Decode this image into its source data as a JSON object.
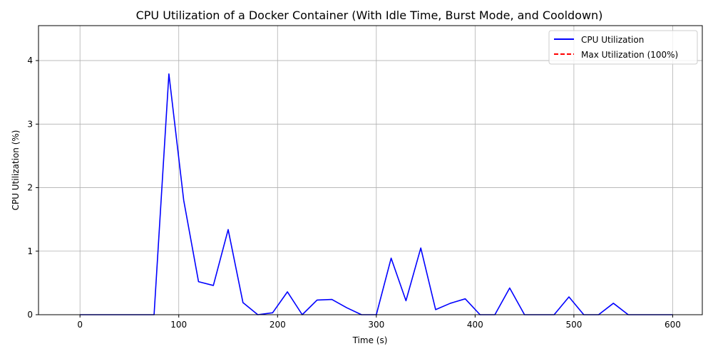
{
  "chart_data": {
    "type": "line",
    "title": "CPU Utilization of a Docker Container (With Idle Time, Burst Mode, and Cooldown)",
    "xlabel": "Time (s)",
    "ylabel": "CPU Utilization (%)",
    "xlim": [
      -42,
      630
    ],
    "ylim": [
      0,
      4.55
    ],
    "xticks": [
      0,
      100,
      200,
      300,
      400,
      500,
      600
    ],
    "yticks": [
      0,
      1,
      2,
      3,
      4
    ],
    "grid": true,
    "legend_position": "top-right",
    "series": [
      {
        "name": "CPU Utilization",
        "color": "#0000ff",
        "style": "solid",
        "x": [
          0,
          15,
          30,
          45,
          60,
          75,
          90,
          105,
          120,
          135,
          150,
          165,
          180,
          195,
          210,
          225,
          240,
          255,
          270,
          285,
          300,
          315,
          330,
          345,
          360,
          375,
          390,
          405,
          420,
          435,
          450,
          465,
          480,
          495,
          510,
          525,
          540,
          555,
          570,
          585,
          600
        ],
        "y": [
          0,
          0,
          0,
          0,
          0,
          0,
          3.79,
          1.8,
          0.52,
          0.46,
          1.34,
          0.19,
          0,
          0.03,
          0.36,
          0,
          0.23,
          0.24,
          0.11,
          0,
          0,
          0.89,
          0.22,
          1.05,
          0.08,
          0.18,
          0.25,
          0,
          0,
          0.42,
          0,
          0,
          0,
          0.28,
          0,
          0,
          0.18,
          0,
          0,
          0,
          0
        ]
      },
      {
        "name": "Max Utilization (100%)",
        "color": "#ff0000",
        "style": "dashed",
        "x": [],
        "y": []
      }
    ]
  }
}
